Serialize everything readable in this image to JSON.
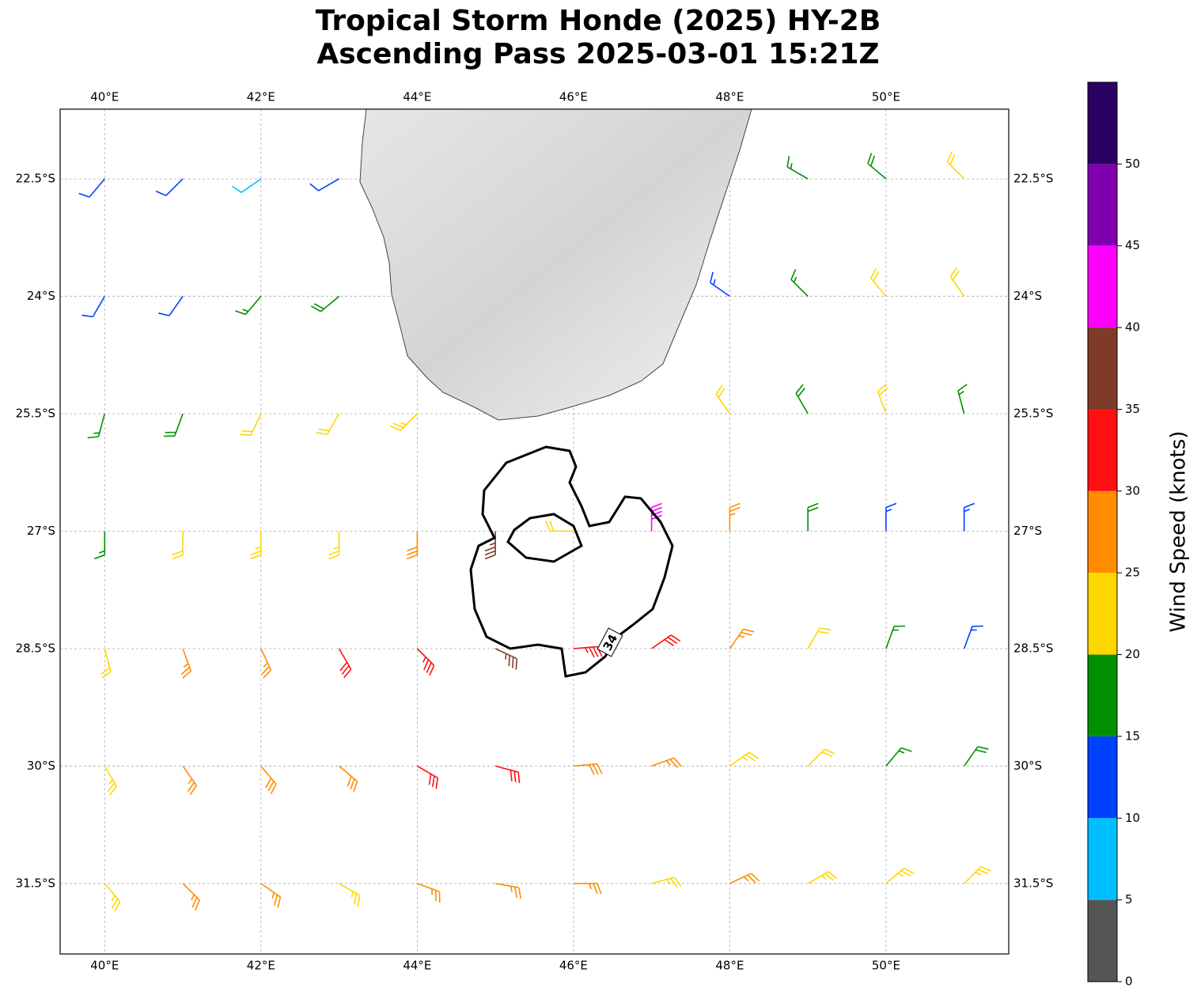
{
  "chart_data": {
    "type": "wind-barbs",
    "title_lines": [
      "Tropical Storm Honde (2025) HY-2B",
      "Ascending Pass 2025-03-01 15:21Z"
    ],
    "xlim": [
      39.43,
      51.57
    ],
    "ylim": [
      -32.4,
      -21.61
    ],
    "xticks": [
      {
        "value": 40,
        "label": "40°E"
      },
      {
        "value": 42,
        "label": "42°E"
      },
      {
        "value": 44,
        "label": "44°E"
      },
      {
        "value": 46,
        "label": "46°E"
      },
      {
        "value": 48,
        "label": "48°E"
      },
      {
        "value": 50,
        "label": "50°E"
      }
    ],
    "yticks": [
      {
        "value": -22.5,
        "label": "22.5°S"
      },
      {
        "value": -24,
        "label": "24°S"
      },
      {
        "value": -25.5,
        "label": "25.5°S"
      },
      {
        "value": -27,
        "label": "27°S"
      },
      {
        "value": -28.5,
        "label": "28.5°S"
      },
      {
        "value": -30,
        "label": "30°S"
      },
      {
        "value": -31.5,
        "label": "31.5°S"
      }
    ],
    "grid": true,
    "colorbar": {
      "label": "Wind Speed (knots)",
      "clim": [
        0,
        55
      ],
      "ticks": [
        0,
        5,
        10,
        15,
        20,
        25,
        30,
        35,
        40,
        45,
        50
      ],
      "colors": [
        "#555555",
        "#00bfff",
        "#0040ff",
        "#009000",
        "#ffd700",
        "#ff8c00",
        "#ff1010",
        "#803a28",
        "#ff00ff",
        "#8000b0",
        "#2a0060"
      ]
    },
    "contour": {
      "level": 34
    },
    "barbs": {
      "lon": [
        40,
        41,
        42,
        43,
        49,
        50,
        51,
        40,
        41,
        42,
        43,
        48,
        49,
        50,
        51,
        40,
        41,
        42,
        43,
        44,
        48,
        49,
        50,
        51,
        40,
        41,
        42,
        43,
        44,
        45,
        46,
        47,
        48,
        49,
        50,
        51,
        40,
        41,
        42,
        43,
        44,
        45,
        46,
        47,
        48,
        49,
        50,
        51,
        40,
        41,
        42,
        43,
        44,
        45,
        46,
        47,
        48,
        49,
        50,
        51,
        40,
        41,
        42,
        43,
        44,
        45,
        46,
        47,
        48,
        49,
        50,
        51
      ],
      "lat": [
        -22.5,
        -22.5,
        -22.5,
        -22.5,
        -22.5,
        -22.5,
        -22.5,
        -24,
        -24,
        -24,
        -24,
        -24,
        -24,
        -24,
        -24,
        -25.5,
        -25.5,
        -25.5,
        -25.5,
        -25.5,
        -25.5,
        -25.5,
        -25.5,
        -25.5,
        -27,
        -27,
        -27,
        -27,
        -27,
        -27,
        -27,
        -27,
        -27,
        -27,
        -27,
        -27,
        -28.5,
        -28.5,
        -28.5,
        -28.5,
        -28.5,
        -28.5,
        -28.5,
        -28.5,
        -28.5,
        -28.5,
        -28.5,
        -28.5,
        -30,
        -30,
        -30,
        -30,
        -30,
        -30,
        -30,
        -30,
        -30,
        -30,
        -30,
        -30,
        -31.5,
        -31.5,
        -31.5,
        -31.5,
        -31.5,
        -31.5,
        -31.5,
        -31.5,
        -31.5,
        -31.5,
        -31.5,
        -31.5
      ],
      "speed": [
        12,
        12,
        8,
        12,
        17,
        18,
        22,
        12,
        12,
        17,
        18,
        13,
        17,
        22,
        22,
        17,
        18,
        22,
        22,
        23,
        22,
        18,
        21,
        17,
        17,
        21,
        23,
        23,
        28,
        37,
        22,
        42,
        27,
        18,
        13,
        13,
        22,
        26,
        27,
        31,
        33,
        36,
        34,
        32,
        27,
        22,
        17,
        13,
        23,
        27,
        28,
        29,
        31,
        31,
        29,
        27,
        24,
        21,
        17,
        18,
        23,
        26,
        26,
        24,
        27,
        27,
        26,
        24,
        26,
        23,
        24,
        23
      ],
      "direction": [
        220,
        225,
        235,
        240,
        300,
        310,
        315,
        210,
        215,
        220,
        230,
        305,
        315,
        320,
        325,
        195,
        200,
        205,
        210,
        225,
        325,
        330,
        340,
        345,
        180,
        180,
        180,
        180,
        180,
        180,
        270,
        0,
        0,
        0,
        0,
        0,
        165,
        160,
        155,
        150,
        135,
        115,
        85,
        55,
        35,
        30,
        20,
        20,
        150,
        145,
        140,
        130,
        120,
        105,
        85,
        70,
        55,
        45,
        40,
        35,
        140,
        135,
        125,
        120,
        110,
        100,
        90,
        75,
        65,
        60,
        50,
        45
      ]
    }
  }
}
